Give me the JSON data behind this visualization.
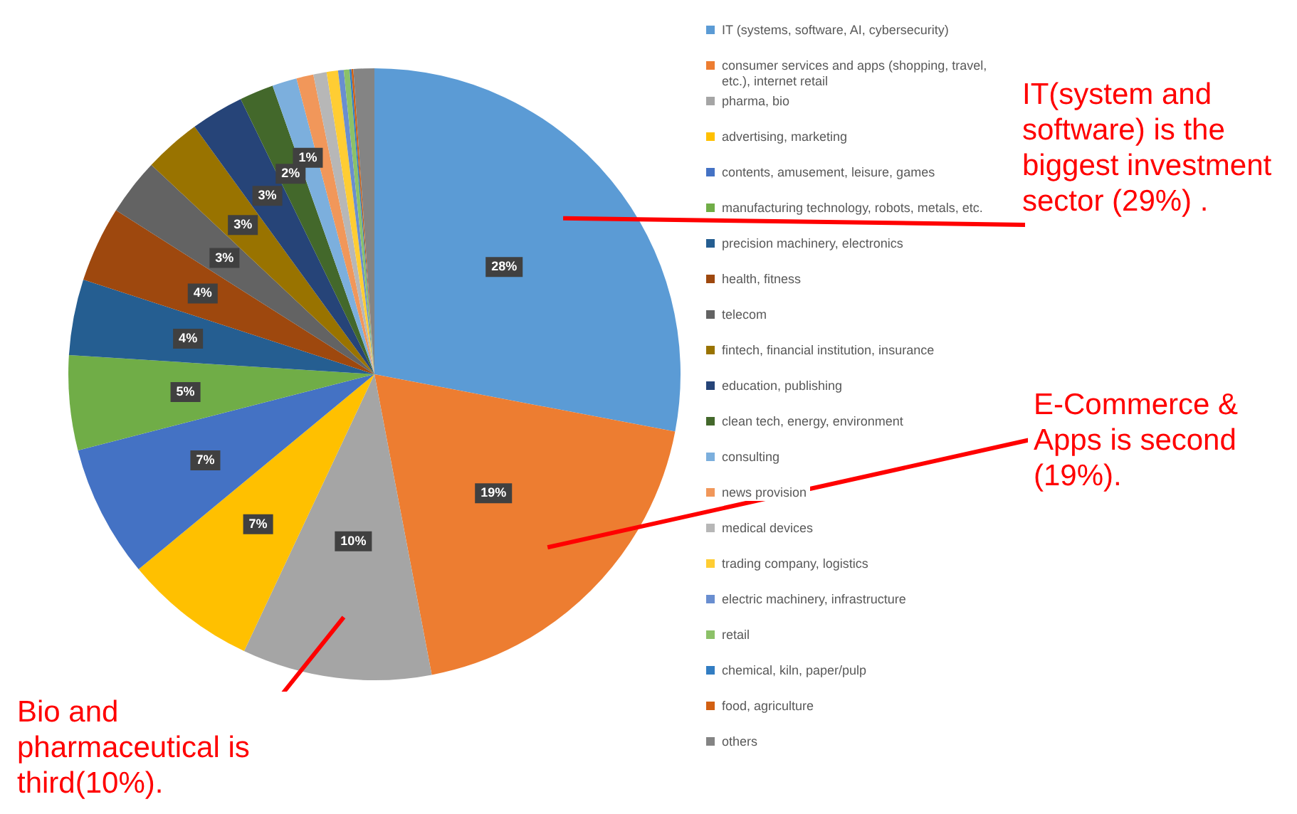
{
  "chart_data": {
    "type": "pie",
    "categories": [
      "IT (systems, software, AI, cybersecurity)",
      "consumer services and apps (shopping, travel, etc.), internet retail",
      "pharma, bio",
      "advertising, marketing",
      "contents, amusement, leisure, games",
      "manufacturing technology, robots, metals, etc.",
      "precision machinery, electronics",
      "health, fitness",
      "telecom",
      "fintech, financial institution, insurance",
      "education, publishing",
      "clean tech, energy, environment",
      "consulting",
      "news provision",
      "medical devices",
      "trading company, logistics",
      "electric machinery, infrastructure",
      "retail",
      "chemical, kiln, paper/pulp",
      "food, agriculture",
      "others"
    ],
    "values": [
      28,
      19,
      10,
      7,
      7,
      5,
      4,
      4,
      3,
      3,
      2.8,
      1.8,
      1.3,
      0.9,
      0.7,
      0.6,
      0.3,
      0.3,
      0.1,
      0.1,
      1.1
    ],
    "colors": [
      "#5b9bd5",
      "#ed7d31",
      "#a5a5a5",
      "#ffc000",
      "#4472c4",
      "#70ad47",
      "#255e91",
      "#9e480e",
      "#636363",
      "#997300",
      "#264478",
      "#43682b",
      "#7cafdd",
      "#f1975a",
      "#b7b7b7",
      "#ffcd33",
      "#698ed0",
      "#8cc168",
      "#327dc2",
      "#d26012",
      "#848484"
    ],
    "value_labels": [
      "28%",
      "19%",
      "10%",
      "7%",
      "7%",
      "5%",
      "4%",
      "4%",
      "3%",
      "3%",
      "3%",
      "2%",
      "1%",
      null,
      null,
      null,
      null,
      null,
      null,
      null,
      null
    ],
    "legend": "right",
    "annotations": [
      "IT(system and software) is the biggest investment sector (29%) .",
      "E-Commerce & Apps is second (19%).",
      "Bio and pharmaceutical is third(10%)."
    ]
  }
}
